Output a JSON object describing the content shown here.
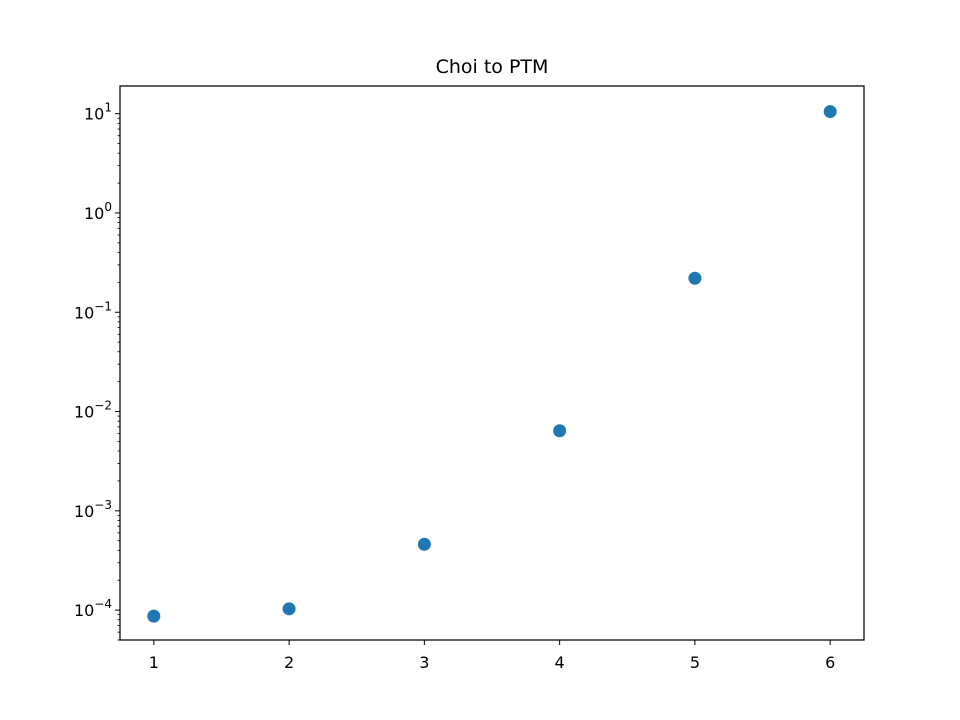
{
  "chart_data": {
    "type": "scatter",
    "title": "Choi to PTM",
    "xlabel": "",
    "ylabel": "",
    "x": [
      1,
      2,
      3,
      4,
      5,
      6
    ],
    "y": [
      8.7e-05,
      0.000103,
      0.00046,
      0.0064,
      0.22,
      10.5
    ],
    "xlim": [
      0.75,
      6.25
    ],
    "ylim": [
      5e-05,
      19
    ],
    "yscale": "log",
    "x_ticks": [
      1,
      2,
      3,
      4,
      5,
      6
    ],
    "y_tick_exponents": [
      -4,
      -3,
      -2,
      -1,
      0,
      1
    ],
    "grid": false,
    "legend": "none",
    "colors": {
      "point": "#1f77b4",
      "axes": "#000000",
      "background": "#ffffff"
    }
  }
}
